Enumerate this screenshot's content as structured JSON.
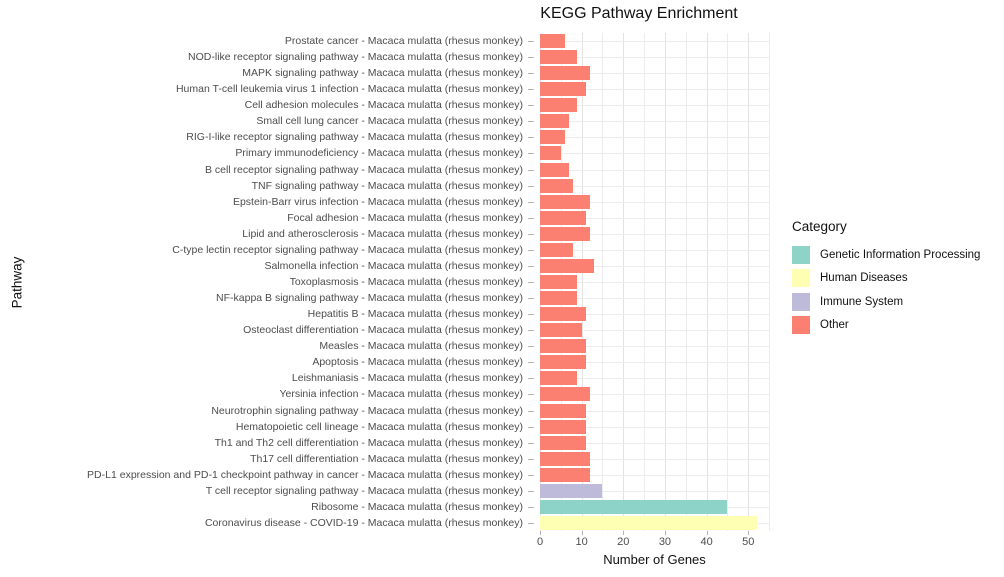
{
  "title": "KEGG Pathway Enrichment",
  "axes": {
    "x_label": "Number of Genes",
    "y_label": "Pathway",
    "x_ticks": [
      0,
      10,
      20,
      30,
      40,
      50
    ]
  },
  "legend": {
    "title": "Category",
    "entries": [
      {
        "label": "Genetic Information Processing",
        "color": "#8DD3C7"
      },
      {
        "label": "Human Diseases",
        "color": "#FFFFB3"
      },
      {
        "label": "Immune System",
        "color": "#BEBADA"
      },
      {
        "label": "Other",
        "color": "#FB8072"
      }
    ]
  },
  "chart_data": {
    "type": "bar",
    "orientation": "horizontal",
    "title": "KEGG Pathway Enrichment",
    "xlabel": "Number of Genes",
    "ylabel": "Pathway",
    "xlim": [
      0,
      55
    ],
    "x_ticks": [
      0,
      10,
      20,
      30,
      40,
      50
    ],
    "grid": true,
    "legend_position": "right",
    "legend_title": "Category",
    "palette": {
      "Genetic Information Processing": "#8DD3C7",
      "Human Diseases": "#FFFFB3",
      "Immune System": "#BEBADA",
      "Other": "#FB8072"
    },
    "bars": [
      {
        "label": "Prostate cancer - Macaca mulatta (rhesus monkey)",
        "value": 6,
        "category": "Other"
      },
      {
        "label": "NOD-like receptor signaling pathway - Macaca mulatta (rhesus monkey)",
        "value": 9,
        "category": "Other"
      },
      {
        "label": "MAPK signaling pathway - Macaca mulatta (rhesus monkey)",
        "value": 12,
        "category": "Other"
      },
      {
        "label": "Human T-cell leukemia virus 1 infection - Macaca mulatta (rhesus monkey)",
        "value": 11,
        "category": "Other"
      },
      {
        "label": "Cell adhesion molecules - Macaca mulatta (rhesus monkey)",
        "value": 9,
        "category": "Other"
      },
      {
        "label": "Small cell lung cancer - Macaca mulatta (rhesus monkey)",
        "value": 7,
        "category": "Other"
      },
      {
        "label": "RIG-I-like receptor signaling pathway - Macaca mulatta (rhesus monkey)",
        "value": 6,
        "category": "Other"
      },
      {
        "label": "Primary immunodeficiency - Macaca mulatta (rhesus monkey)",
        "value": 5,
        "category": "Other"
      },
      {
        "label": "B cell receptor signaling pathway - Macaca mulatta (rhesus monkey)",
        "value": 7,
        "category": "Other"
      },
      {
        "label": "TNF signaling pathway - Macaca mulatta (rhesus monkey)",
        "value": 8,
        "category": "Other"
      },
      {
        "label": "Epstein-Barr virus infection - Macaca mulatta (rhesus monkey)",
        "value": 12,
        "category": "Other"
      },
      {
        "label": "Focal adhesion - Macaca mulatta (rhesus monkey)",
        "value": 11,
        "category": "Other"
      },
      {
        "label": "Lipid and atherosclerosis - Macaca mulatta (rhesus monkey)",
        "value": 12,
        "category": "Other"
      },
      {
        "label": "C-type lectin receptor signaling pathway - Macaca mulatta (rhesus monkey)",
        "value": 8,
        "category": "Other"
      },
      {
        "label": "Salmonella infection - Macaca mulatta (rhesus monkey)",
        "value": 13,
        "category": "Other"
      },
      {
        "label": "Toxoplasmosis - Macaca mulatta (rhesus monkey)",
        "value": 9,
        "category": "Other"
      },
      {
        "label": "NF-kappa B signaling pathway - Macaca mulatta (rhesus monkey)",
        "value": 9,
        "category": "Other"
      },
      {
        "label": "Hepatitis B - Macaca mulatta (rhesus monkey)",
        "value": 11,
        "category": "Other"
      },
      {
        "label": "Osteoclast differentiation - Macaca mulatta (rhesus monkey)",
        "value": 10,
        "category": "Other"
      },
      {
        "label": "Measles - Macaca mulatta (rhesus monkey)",
        "value": 11,
        "category": "Other"
      },
      {
        "label": "Apoptosis - Macaca mulatta (rhesus monkey)",
        "value": 11,
        "category": "Other"
      },
      {
        "label": "Leishmaniasis - Macaca mulatta (rhesus monkey)",
        "value": 9,
        "category": "Other"
      },
      {
        "label": "Yersinia infection - Macaca mulatta (rhesus monkey)",
        "value": 12,
        "category": "Other"
      },
      {
        "label": "Neurotrophin signaling pathway - Macaca mulatta (rhesus monkey)",
        "value": 11,
        "category": "Other"
      },
      {
        "label": "Hematopoietic cell lineage - Macaca mulatta (rhesus monkey)",
        "value": 11,
        "category": "Other"
      },
      {
        "label": "Th1 and Th2 cell differentiation - Macaca mulatta (rhesus monkey)",
        "value": 11,
        "category": "Other"
      },
      {
        "label": "Th17 cell differentiation - Macaca mulatta (rhesus monkey)",
        "value": 12,
        "category": "Other"
      },
      {
        "label": "PD-L1 expression and PD-1 checkpoint pathway in cancer - Macaca mulatta (rhesus monkey)",
        "value": 12,
        "category": "Other"
      },
      {
        "label": "T cell receptor signaling pathway - Macaca mulatta (rhesus monkey)",
        "value": 15,
        "category": "Immune System"
      },
      {
        "label": "Ribosome - Macaca mulatta (rhesus monkey)",
        "value": 45,
        "category": "Genetic Information Processing"
      },
      {
        "label": "Coronavirus disease - COVID-19 - Macaca mulatta (rhesus monkey)",
        "value": 52,
        "category": "Human Diseases"
      }
    ]
  }
}
